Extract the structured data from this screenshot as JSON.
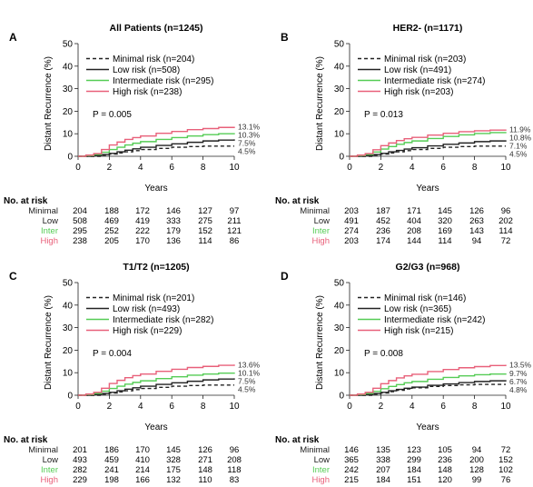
{
  "chart_data": [
    {
      "panel_letter": "A",
      "type": "line",
      "title": "All Patients (n=1245)",
      "xlabel": "Years",
      "ylabel": "Distant Recurrence (%)",
      "xlim": [
        0,
        10
      ],
      "ylim": [
        0,
        50
      ],
      "xticks": [
        0,
        2,
        4,
        6,
        8,
        10
      ],
      "yticks": [
        0,
        10,
        20,
        30,
        40,
        50
      ],
      "pvalue": "P = 0.005",
      "series": [
        {
          "name": "Minimal risk (n=204)",
          "color": "#222222",
          "dash": true,
          "end_label": "4.5%",
          "x": [
            0,
            1,
            1.5,
            2,
            2.5,
            3,
            3.5,
            4,
            5,
            6,
            7,
            8,
            9,
            10
          ],
          "y": [
            0,
            0,
            0.5,
            1,
            1.5,
            2,
            2.5,
            3,
            3.5,
            4,
            4.3,
            4.5,
            4.5,
            4.5
          ]
        },
        {
          "name": "Low risk (n=508)",
          "color": "#222222",
          "dash": false,
          "end_label": "7.5%",
          "x": [
            0,
            1,
            1.5,
            2,
            2.5,
            3,
            3.5,
            4,
            5,
            6,
            7,
            8,
            9,
            10
          ],
          "y": [
            0,
            0.3,
            0.8,
            1.3,
            2,
            2.7,
            3.3,
            4,
            4.8,
            5.5,
            6.2,
            6.8,
            7.2,
            7.5
          ]
        },
        {
          "name": "Intermediate risk (n=295)",
          "color": "#55cc55",
          "dash": false,
          "end_label": "10.3%",
          "x": [
            0,
            0.5,
            1,
            1.5,
            2,
            2.5,
            3,
            3.5,
            4,
            5,
            6,
            7,
            8,
            9,
            10
          ],
          "y": [
            0,
            0.3,
            0.8,
            1.8,
            3,
            4,
            5,
            5.8,
            6.5,
            7.5,
            8.3,
            9,
            9.6,
            10,
            10.3
          ]
        },
        {
          "name": "High risk (n=238)",
          "color": "#e8607a",
          "dash": false,
          "end_label": "13.1%",
          "x": [
            0,
            0.5,
            1,
            1.5,
            2,
            2.5,
            3,
            3.5,
            4,
            5,
            6,
            7,
            8,
            9,
            10
          ],
          "y": [
            0,
            0.5,
            1.2,
            3,
            5,
            6.3,
            7.5,
            8.3,
            9,
            10.2,
            11,
            11.8,
            12.3,
            12.8,
            13.1
          ]
        }
      ],
      "at_risk": {
        "heading": "No. at risk",
        "rows": [
          {
            "label": "Minimal",
            "color": "#222222",
            "values": [
              "204",
              "188",
              "172",
              "146",
              "127",
              "97"
            ]
          },
          {
            "label": "Low",
            "color": "#222222",
            "values": [
              "508",
              "469",
              "419",
              "333",
              "275",
              "211"
            ]
          },
          {
            "label": "Inter",
            "color": "#55cc55",
            "values": [
              "295",
              "252",
              "222",
              "179",
              "152",
              "121"
            ]
          },
          {
            "label": "High",
            "color": "#e8607a",
            "values": [
              "238",
              "205",
              "170",
              "136",
              "114",
              "86"
            ]
          }
        ]
      }
    },
    {
      "panel_letter": "B",
      "type": "line",
      "title": "HER2- (n=1171)",
      "xlabel": "Years",
      "ylabel": "Distant Recurrence (%)",
      "xlim": [
        0,
        10
      ],
      "ylim": [
        0,
        50
      ],
      "xticks": [
        0,
        2,
        4,
        6,
        8,
        10
      ],
      "yticks": [
        0,
        10,
        20,
        30,
        40,
        50
      ],
      "pvalue": "P = 0.013",
      "series": [
        {
          "name": "Minimal risk (n=203)",
          "color": "#222222",
          "dash": true,
          "end_label": "4.5%",
          "x": [
            0,
            1,
            1.5,
            2,
            2.5,
            3,
            3.5,
            4,
            5,
            6,
            7,
            8,
            9,
            10
          ],
          "y": [
            0,
            0,
            0.5,
            1,
            1.5,
            2,
            2.5,
            3,
            3.5,
            4,
            4.3,
            4.5,
            4.5,
            4.5
          ]
        },
        {
          "name": "Low risk (n=491)",
          "color": "#222222",
          "dash": false,
          "end_label": "7.1%",
          "x": [
            0,
            1,
            1.5,
            2,
            2.5,
            3,
            3.5,
            4,
            5,
            6,
            7,
            8,
            9,
            10
          ],
          "y": [
            0,
            0.3,
            0.8,
            1.3,
            2,
            2.6,
            3.2,
            3.8,
            4.6,
            5.3,
            5.9,
            6.5,
            6.8,
            7.1
          ]
        },
        {
          "name": "Intermediate risk (n=274)",
          "color": "#55cc55",
          "dash": false,
          "end_label": "10.8%",
          "x": [
            0,
            0.5,
            1,
            1.5,
            2,
            2.5,
            3,
            3.5,
            4,
            5,
            6,
            7,
            8,
            9,
            10
          ],
          "y": [
            0,
            0.3,
            0.8,
            1.9,
            3.2,
            4.3,
            5.3,
            6.1,
            6.8,
            7.9,
            8.8,
            9.5,
            10.1,
            10.5,
            10.8
          ]
        },
        {
          "name": "High risk (n=203)",
          "color": "#e8607a",
          "dash": false,
          "end_label": "11.9%",
          "x": [
            0,
            0.5,
            1,
            1.5,
            2,
            2.5,
            3,
            3.5,
            4,
            5,
            6,
            7,
            8,
            9,
            10
          ],
          "y": [
            0,
            0.5,
            1.2,
            2.9,
            4.7,
            5.9,
            7,
            7.8,
            8.4,
            9.4,
            10.2,
            10.9,
            11.3,
            11.6,
            11.9
          ]
        }
      ],
      "at_risk": {
        "heading": "No. at risk",
        "rows": [
          {
            "label": "Minimal",
            "color": "#222222",
            "values": [
              "203",
              "187",
              "171",
              "145",
              "126",
              "96"
            ]
          },
          {
            "label": "Low",
            "color": "#222222",
            "values": [
              "491",
              "452",
              "404",
              "320",
              "263",
              "202"
            ]
          },
          {
            "label": "Inter",
            "color": "#55cc55",
            "values": [
              "274",
              "236",
              "208",
              "169",
              "143",
              "114"
            ]
          },
          {
            "label": "High",
            "color": "#e8607a",
            "values": [
              "203",
              "174",
              "144",
              "114",
              "94",
              "72"
            ]
          }
        ]
      }
    },
    {
      "panel_letter": "C",
      "type": "line",
      "title": "T1/T2 (n=1205)",
      "xlabel": "Years",
      "ylabel": "Distant Recurrence (%)",
      "xlim": [
        0,
        10
      ],
      "ylim": [
        0,
        50
      ],
      "xticks": [
        0,
        2,
        4,
        6,
        8,
        10
      ],
      "yticks": [
        0,
        10,
        20,
        30,
        40,
        50
      ],
      "pvalue": "P = 0.004",
      "series": [
        {
          "name": "Minimal risk (n=201)",
          "color": "#222222",
          "dash": true,
          "end_label": "4.5%",
          "x": [
            0,
            1,
            1.5,
            2,
            2.5,
            3,
            3.5,
            4,
            5,
            6,
            7,
            8,
            9,
            10
          ],
          "y": [
            0,
            0,
            0.5,
            1,
            1.5,
            2,
            2.5,
            3,
            3.5,
            4,
            4.3,
            4.5,
            4.5,
            4.5
          ]
        },
        {
          "name": "Low risk (n=493)",
          "color": "#222222",
          "dash": false,
          "end_label": "7.5%",
          "x": [
            0,
            1,
            1.5,
            2,
            2.5,
            3,
            3.5,
            4,
            5,
            6,
            7,
            8,
            9,
            10
          ],
          "y": [
            0,
            0.3,
            0.8,
            1.3,
            2,
            2.7,
            3.3,
            4,
            4.8,
            5.5,
            6.2,
            6.8,
            7.2,
            7.5
          ]
        },
        {
          "name": "Intermediate risk (n=282)",
          "color": "#55cc55",
          "dash": false,
          "end_label": "10.1%",
          "x": [
            0,
            0.5,
            1,
            1.5,
            2,
            2.5,
            3,
            3.5,
            4,
            5,
            6,
            7,
            8,
            9,
            10
          ],
          "y": [
            0,
            0.3,
            0.8,
            1.8,
            3,
            4,
            4.9,
            5.7,
            6.4,
            7.4,
            8.2,
            8.9,
            9.4,
            9.8,
            10.1
          ]
        },
        {
          "name": "High risk (n=229)",
          "color": "#e8607a",
          "dash": false,
          "end_label": "13.6%",
          "x": [
            0,
            0.5,
            1,
            1.5,
            2,
            2.5,
            3,
            3.5,
            4,
            5,
            6,
            7,
            8,
            9,
            10
          ],
          "y": [
            0,
            0.5,
            1.3,
            3.1,
            5.2,
            6.6,
            7.8,
            8.7,
            9.4,
            10.6,
            11.5,
            12.3,
            12.8,
            13.3,
            13.6
          ]
        }
      ],
      "at_risk": {
        "heading": "No. at risk",
        "rows": [
          {
            "label": "Minimal",
            "color": "#222222",
            "values": [
              "201",
              "186",
              "170",
              "145",
              "126",
              "96"
            ]
          },
          {
            "label": "Low",
            "color": "#222222",
            "values": [
              "493",
              "459",
              "410",
              "328",
              "271",
              "208"
            ]
          },
          {
            "label": "Inter",
            "color": "#55cc55",
            "values": [
              "282",
              "241",
              "214",
              "175",
              "148",
              "118"
            ]
          },
          {
            "label": "High",
            "color": "#e8607a",
            "values": [
              "229",
              "198",
              "166",
              "132",
              "110",
              "83"
            ]
          }
        ]
      }
    },
    {
      "panel_letter": "D",
      "type": "line",
      "title": "G2/G3 (n=968)",
      "xlabel": "Years",
      "ylabel": "Distant Recurrence (%)",
      "xlim": [
        0,
        10
      ],
      "ylim": [
        0,
        50
      ],
      "xticks": [
        0,
        2,
        4,
        6,
        8,
        10
      ],
      "yticks": [
        0,
        10,
        20,
        30,
        40,
        50
      ],
      "pvalue": "P = 0.008",
      "series": [
        {
          "name": "Minimal risk (n=146)",
          "color": "#222222",
          "dash": true,
          "end_label": "4.8%",
          "x": [
            0,
            1,
            1.5,
            2,
            2.5,
            3,
            3.5,
            4,
            5,
            6,
            7,
            8,
            9,
            10
          ],
          "y": [
            0,
            0,
            0.5,
            1,
            1.6,
            2.2,
            2.8,
            3.3,
            3.9,
            4.3,
            4.6,
            4.8,
            4.8,
            4.8
          ]
        },
        {
          "name": "Low risk (n=365)",
          "color": "#222222",
          "dash": false,
          "end_label": "6.7%",
          "x": [
            0,
            1,
            1.5,
            2,
            2.5,
            3,
            3.5,
            4,
            5,
            6,
            7,
            8,
            9,
            10
          ],
          "y": [
            0,
            0.3,
            0.8,
            1.3,
            2,
            2.6,
            3.1,
            3.6,
            4.4,
            5,
            5.6,
            6.1,
            6.4,
            6.7
          ]
        },
        {
          "name": "Intermediate risk (n=242)",
          "color": "#55cc55",
          "dash": false,
          "end_label": "9.7%",
          "x": [
            0,
            0.5,
            1,
            1.5,
            2,
            2.5,
            3,
            3.5,
            4,
            5,
            6,
            7,
            8,
            9,
            10
          ],
          "y": [
            0,
            0.3,
            0.8,
            1.7,
            2.9,
            3.9,
            4.7,
            5.5,
            6.1,
            7.1,
            7.9,
            8.6,
            9.1,
            9.4,
            9.7
          ]
        },
        {
          "name": "High risk (n=215)",
          "color": "#e8607a",
          "dash": false,
          "end_label": "13.5%",
          "x": [
            0,
            0.5,
            1,
            1.5,
            2,
            2.5,
            3,
            3.5,
            4,
            5,
            6,
            7,
            8,
            9,
            10
          ],
          "y": [
            0,
            0.5,
            1.3,
            3.1,
            5.1,
            6.5,
            7.7,
            8.6,
            9.3,
            10.5,
            11.4,
            12.2,
            12.7,
            13.2,
            13.5
          ]
        }
      ],
      "at_risk": {
        "heading": "No. at risk",
        "rows": [
          {
            "label": "Minimal",
            "color": "#222222",
            "values": [
              "146",
              "135",
              "123",
              "105",
              "94",
              "72"
            ]
          },
          {
            "label": "Low",
            "color": "#222222",
            "values": [
              "365",
              "338",
              "299",
              "236",
              "200",
              "152"
            ]
          },
          {
            "label": "Inter",
            "color": "#55cc55",
            "values": [
              "242",
              "207",
              "184",
              "148",
              "128",
              "102"
            ]
          },
          {
            "label": "High",
            "color": "#e8607a",
            "values": [
              "215",
              "184",
              "151",
              "120",
              "99",
              "76"
            ]
          }
        ]
      }
    }
  ]
}
